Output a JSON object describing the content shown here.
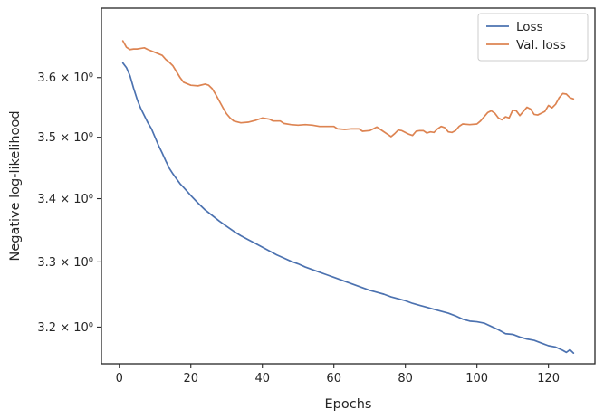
{
  "chart_data": {
    "type": "line",
    "title": "",
    "xlabel": "Epochs",
    "ylabel": "Negative log-likelihood",
    "xlim": [
      -5,
      133
    ],
    "ylim": [
      3.145,
      3.72
    ],
    "yscale": "log",
    "grid": false,
    "legend_position": "top-right",
    "x_ticks": [
      0,
      20,
      40,
      60,
      80,
      100,
      120
    ],
    "x_tick_labels": [
      "0",
      "20",
      "40",
      "60",
      "80",
      "100",
      "120"
    ],
    "y_ticks": [
      3.2,
      3.3,
      3.4,
      3.5,
      3.6
    ],
    "y_tick_labels": [
      "3.2 × 10⁰",
      "3.3 × 10⁰",
      "3.4 × 10⁰",
      "3.5 × 10⁰",
      "3.6 × 10⁰"
    ],
    "series": [
      {
        "name": "Loss",
        "color": "#4c72b0",
        "points": [
          [
            1,
            3.625
          ],
          [
            2,
            3.617
          ],
          [
            3,
            3.603
          ],
          [
            4,
            3.582
          ],
          [
            5,
            3.563
          ],
          [
            6,
            3.548
          ],
          [
            7,
            3.536
          ],
          [
            8,
            3.524
          ],
          [
            9,
            3.514
          ],
          [
            10,
            3.5
          ],
          [
            11,
            3.486
          ],
          [
            12,
            3.474
          ],
          [
            13,
            3.461
          ],
          [
            14,
            3.449
          ],
          [
            15,
            3.44
          ],
          [
            16,
            3.432
          ],
          [
            17,
            3.424
          ],
          [
            18,
            3.418
          ],
          [
            20,
            3.405
          ],
          [
            22,
            3.393
          ],
          [
            24,
            3.382
          ],
          [
            26,
            3.373
          ],
          [
            28,
            3.364
          ],
          [
            30,
            3.356
          ],
          [
            32,
            3.348
          ],
          [
            34,
            3.341
          ],
          [
            36,
            3.335
          ],
          [
            38,
            3.329
          ],
          [
            40,
            3.323
          ],
          [
            42,
            3.317
          ],
          [
            44,
            3.311
          ],
          [
            46,
            3.306
          ],
          [
            48,
            3.301
          ],
          [
            50,
            3.297
          ],
          [
            52,
            3.292
          ],
          [
            54,
            3.288
          ],
          [
            56,
            3.284
          ],
          [
            58,
            3.28
          ],
          [
            60,
            3.276
          ],
          [
            62,
            3.272
          ],
          [
            64,
            3.268
          ],
          [
            66,
            3.264
          ],
          [
            68,
            3.26
          ],
          [
            70,
            3.256
          ],
          [
            72,
            3.253
          ],
          [
            74,
            3.25
          ],
          [
            76,
            3.246
          ],
          [
            78,
            3.243
          ],
          [
            80,
            3.24
          ],
          [
            82,
            3.236
          ],
          [
            84,
            3.233
          ],
          [
            86,
            3.23
          ],
          [
            88,
            3.227
          ],
          [
            90,
            3.224
          ],
          [
            92,
            3.221
          ],
          [
            94,
            3.217
          ],
          [
            96,
            3.212
          ],
          [
            98,
            3.209
          ],
          [
            100,
            3.208
          ],
          [
            102,
            3.206
          ],
          [
            104,
            3.201
          ],
          [
            106,
            3.196
          ],
          [
            108,
            3.19
          ],
          [
            110,
            3.189
          ],
          [
            112,
            3.185
          ],
          [
            114,
            3.182
          ],
          [
            116,
            3.18
          ],
          [
            118,
            3.176
          ],
          [
            120,
            3.172
          ],
          [
            122,
            3.17
          ],
          [
            124,
            3.165
          ],
          [
            125,
            3.162
          ],
          [
            126,
            3.166
          ],
          [
            127,
            3.161
          ]
        ]
      },
      {
        "name": "Val. loss",
        "color": "#dd8452",
        "points": [
          [
            1,
            3.663
          ],
          [
            2,
            3.652
          ],
          [
            3,
            3.648
          ],
          [
            4,
            3.649
          ],
          [
            5,
            3.649
          ],
          [
            6,
            3.65
          ],
          [
            7,
            3.651
          ],
          [
            8,
            3.648
          ],
          [
            10,
            3.643
          ],
          [
            12,
            3.638
          ],
          [
            13,
            3.631
          ],
          [
            14,
            3.626
          ],
          [
            15,
            3.62
          ],
          [
            16,
            3.61
          ],
          [
            17,
            3.6
          ],
          [
            18,
            3.592
          ],
          [
            20,
            3.587
          ],
          [
            22,
            3.586
          ],
          [
            24,
            3.589
          ],
          [
            25,
            3.587
          ],
          [
            26,
            3.581
          ],
          [
            27,
            3.571
          ],
          [
            28,
            3.56
          ],
          [
            29,
            3.549
          ],
          [
            30,
            3.539
          ],
          [
            31,
            3.532
          ],
          [
            32,
            3.527
          ],
          [
            34,
            3.524
          ],
          [
            36,
            3.525
          ],
          [
            38,
            3.528
          ],
          [
            40,
            3.532
          ],
          [
            42,
            3.53
          ],
          [
            43,
            3.527
          ],
          [
            45,
            3.527
          ],
          [
            46,
            3.523
          ],
          [
            48,
            3.521
          ],
          [
            50,
            3.52
          ],
          [
            52,
            3.521
          ],
          [
            54,
            3.52
          ],
          [
            56,
            3.518
          ],
          [
            58,
            3.518
          ],
          [
            60,
            3.518
          ],
          [
            61,
            3.514
          ],
          [
            63,
            3.513
          ],
          [
            65,
            3.514
          ],
          [
            67,
            3.514
          ],
          [
            68,
            3.51
          ],
          [
            70,
            3.511
          ],
          [
            72,
            3.517
          ],
          [
            73,
            3.513
          ],
          [
            75,
            3.505
          ],
          [
            76,
            3.501
          ],
          [
            77,
            3.506
          ],
          [
            78,
            3.512
          ],
          [
            79,
            3.511
          ],
          [
            80,
            3.508
          ],
          [
            81,
            3.505
          ],
          [
            82,
            3.503
          ],
          [
            83,
            3.51
          ],
          [
            84,
            3.511
          ],
          [
            85,
            3.511
          ],
          [
            86,
            3.507
          ],
          [
            87,
            3.509
          ],
          [
            88,
            3.508
          ],
          [
            89,
            3.514
          ],
          [
            90,
            3.518
          ],
          [
            91,
            3.516
          ],
          [
            92,
            3.509
          ],
          [
            93,
            3.508
          ],
          [
            94,
            3.511
          ],
          [
            95,
            3.518
          ],
          [
            96,
            3.522
          ],
          [
            98,
            3.521
          ],
          [
            100,
            3.522
          ],
          [
            101,
            3.527
          ],
          [
            102,
            3.534
          ],
          [
            103,
            3.541
          ],
          [
            104,
            3.544
          ],
          [
            105,
            3.54
          ],
          [
            106,
            3.532
          ],
          [
            107,
            3.529
          ],
          [
            108,
            3.534
          ],
          [
            109,
            3.532
          ],
          [
            110,
            3.545
          ],
          [
            111,
            3.544
          ],
          [
            112,
            3.536
          ],
          [
            113,
            3.543
          ],
          [
            114,
            3.55
          ],
          [
            115,
            3.547
          ],
          [
            116,
            3.538
          ],
          [
            117,
            3.537
          ],
          [
            118,
            3.54
          ],
          [
            119,
            3.543
          ],
          [
            120,
            3.553
          ],
          [
            121,
            3.549
          ],
          [
            122,
            3.555
          ],
          [
            123,
            3.566
          ],
          [
            124,
            3.573
          ],
          [
            125,
            3.572
          ],
          [
            126,
            3.566
          ],
          [
            127,
            3.564
          ]
        ]
      }
    ]
  }
}
